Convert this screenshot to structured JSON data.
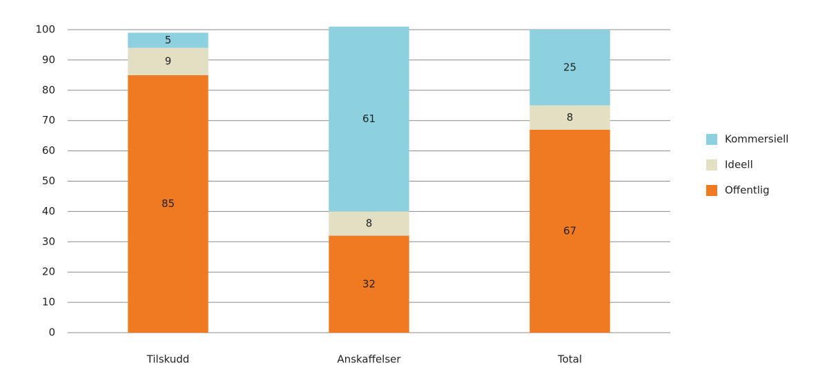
{
  "chart_data": {
    "type": "stacked-bar",
    "categories": [
      "Tilskudd",
      "Anskaffelser",
      "Total"
    ],
    "series": [
      {
        "name": "Offentlig",
        "color": "#f07a22",
        "values": [
          85,
          32,
          67
        ]
      },
      {
        "name": "Ideell",
        "color": "#e3dfc3",
        "values": [
          9,
          8,
          8
        ]
      },
      {
        "name": "Kommersiell",
        "color": "#8dd0e0",
        "values": [
          5,
          61,
          25
        ]
      }
    ],
    "ylim": [
      0,
      100
    ],
    "yticks": [
      0,
      10,
      20,
      30,
      40,
      50,
      60,
      70,
      80,
      90,
      100
    ],
    "grid": true,
    "legend": "right"
  }
}
